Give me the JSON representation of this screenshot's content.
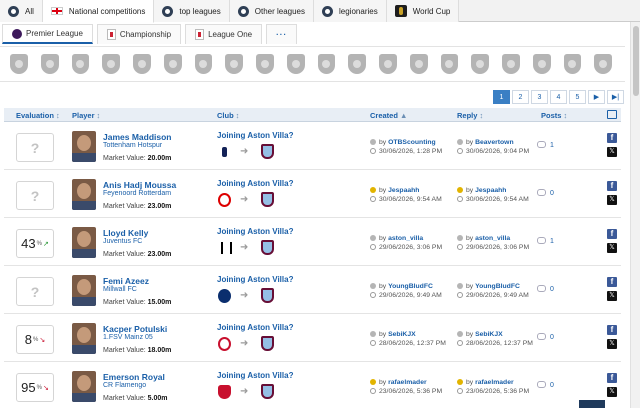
{
  "top_tabs": [
    {
      "label": "All",
      "icon": "globe-icon"
    },
    {
      "label": "National competitions",
      "icon": "england-flag-icon"
    },
    {
      "label": "top leagues",
      "icon": "globe-icon"
    },
    {
      "label": "Other leagues",
      "icon": "globe-icon"
    },
    {
      "label": "legionaries",
      "icon": "globe-icon"
    },
    {
      "label": "World Cup",
      "icon": "world-cup-icon"
    }
  ],
  "sub_tabs": [
    {
      "label": "Premier League",
      "icon": "premier-league-icon"
    },
    {
      "label": "Championship",
      "icon": "championship-icon"
    },
    {
      "label": "League One",
      "icon": "league-one-icon"
    },
    {
      "label": "···",
      "icon": "more-icon"
    }
  ],
  "club_strip_count": 20,
  "pagination": [
    "1",
    "2",
    "3",
    "4",
    "5",
    "▶",
    "▶|"
  ],
  "table_headers": {
    "evaluation": "Evaluation",
    "player": "Player",
    "club": "Club",
    "created": "Created",
    "reply": "Reply",
    "posts": "Posts"
  },
  "rows": [
    {
      "evaluation": "?",
      "name": "James Maddison",
      "club": "Tottenham Hotspur",
      "mv_label": "Market Value:",
      "mv": "20.00m",
      "rumor": "Joining Aston Villa?",
      "from_logo": "spurs",
      "created_by": "OTBScounting",
      "created_at": "30/06/2026, 1:28 PM",
      "reply_by": "Beavertown",
      "reply_at": "30/06/2026, 9:04 PM",
      "posts": "1",
      "user_gold": false
    },
    {
      "evaluation": "?",
      "name": "Anis Hadj Moussa",
      "club": "Feyenoord Rotterdam",
      "mv_label": "Market Value:",
      "mv": "23.00m",
      "rumor": "Joining Aston Villa?",
      "from_logo": "feyenoord",
      "created_by": "Jespaahh",
      "created_at": "30/06/2026, 9:54 AM",
      "reply_by": "Jespaahh",
      "reply_at": "30/06/2026, 9:54 AM",
      "posts": "0",
      "user_gold": true
    },
    {
      "evaluation": "43",
      "evaluation_trend": "up",
      "name": "Lloyd Kelly",
      "club": "Juventus FC",
      "mv_label": "Market Value:",
      "mv": "23.00m",
      "rumor": "Joining Aston Villa?",
      "from_logo": "juve",
      "created_by": "aston_villa",
      "created_at": "29/06/2026, 3:06 PM",
      "reply_by": "aston_villa",
      "reply_at": "29/06/2026, 3:06 PM",
      "posts": "1",
      "user_gold": false
    },
    {
      "evaluation": "?",
      "name": "Femi Azeez",
      "club": "Millwall FC",
      "mv_label": "Market Value:",
      "mv": "15.00m",
      "rumor": "Joining Aston Villa?",
      "from_logo": "millwall",
      "created_by": "YoungBludFC",
      "created_at": "29/06/2026, 9:49 AM",
      "reply_by": "YoungBludFC",
      "reply_at": "29/06/2026, 9:49 AM",
      "posts": "0",
      "user_gold": false
    },
    {
      "evaluation": "8",
      "evaluation_trend": "down",
      "name": "Kacper Potulski",
      "club": "1.FSV Mainz 05",
      "mv_label": "Market Value:",
      "mv": "18.00m",
      "rumor": "Joining Aston Villa?",
      "from_logo": "mainz",
      "created_by": "SebiKJX",
      "created_at": "28/06/2026, 12:37 PM",
      "reply_by": "SebiKJX",
      "reply_at": "28/06/2026, 12:37 PM",
      "posts": "0",
      "user_gold": false
    },
    {
      "evaluation": "95",
      "evaluation_trend": "down",
      "name": "Emerson Royal",
      "club": "CR Flamengo",
      "mv_label": "Market Value:",
      "mv": "5.00m",
      "rumor": "Joining Aston Villa?",
      "from_logo": "flamengo",
      "created_by": "rafaelmader",
      "created_at": "23/06/2026, 5:36 PM",
      "reply_by": "rafaelmader",
      "reply_at": "23/06/2026, 5:36 PM",
      "posts": "0",
      "user_gold": true
    }
  ],
  "by_label": "by",
  "percent_label": "%",
  "colors": {
    "accent": "#1a5fa8",
    "header_bg": "#e8eef5",
    "villa_claret": "#670e36",
    "villa_blue": "#95bfe5"
  }
}
